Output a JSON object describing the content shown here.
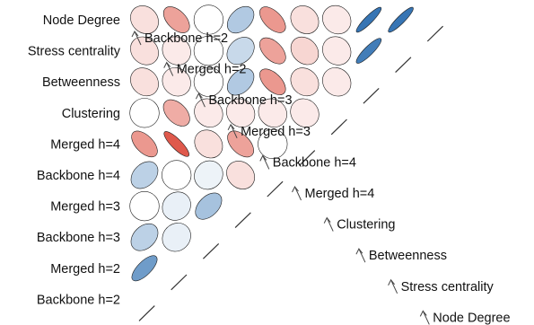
{
  "chart_data": {
    "type": "heatmap",
    "subtype": "correlation-ellipse-upper-triangle",
    "variables": [
      "Node Degree",
      "Stress centrality",
      "Betweenness",
      "Clustering",
      "Merged h=4",
      "Backbone h=4",
      "Merged h=3",
      "Backbone h=3",
      "Merged h=2",
      "Backbone h=2"
    ],
    "row_labels": [
      "Node Degree",
      "Stress centrality",
      "Betweenness",
      "Clustering",
      "Merged h=4",
      "Backbone h=4",
      "Merged h=3",
      "Backbone h=3",
      "Merged h=2",
      "Backbone h=2"
    ],
    "column_labels": [
      "Node Degree",
      "Stress centrality",
      "Betweenness",
      "Clustering",
      "Merged h=4",
      "Backbone h=4",
      "Merged h=3",
      "Backbone h=3",
      "Merged h=2",
      "Backbone h=2"
    ],
    "matrix": [
      [
        -0.15,
        -0.45,
        0.0,
        0.35,
        -0.5,
        -0.15,
        -0.1,
        0.9,
        0.9
      ],
      [
        -0.15,
        -0.1,
        0.0,
        0.25,
        -0.45,
        -0.2,
        -0.1,
        0.85
      ],
      [
        -0.15,
        -0.1,
        0.0,
        0.35,
        -0.5,
        -0.15,
        -0.1
      ],
      [
        0.0,
        -0.4,
        -0.1,
        -0.1,
        -0.1,
        -0.1
      ],
      [
        -0.5,
        -0.8,
        -0.15,
        -0.45,
        0.0
      ],
      [
        0.3,
        0.0,
        0.08,
        -0.15
      ],
      [
        0.0,
        0.1,
        0.4
      ],
      [
        0.3,
        0.1
      ],
      [
        0.65
      ]
    ],
    "color_scale": {
      "negative": "#d7301f",
      "zero": "#ffffff",
      "positive": "#2166ac"
    }
  }
}
